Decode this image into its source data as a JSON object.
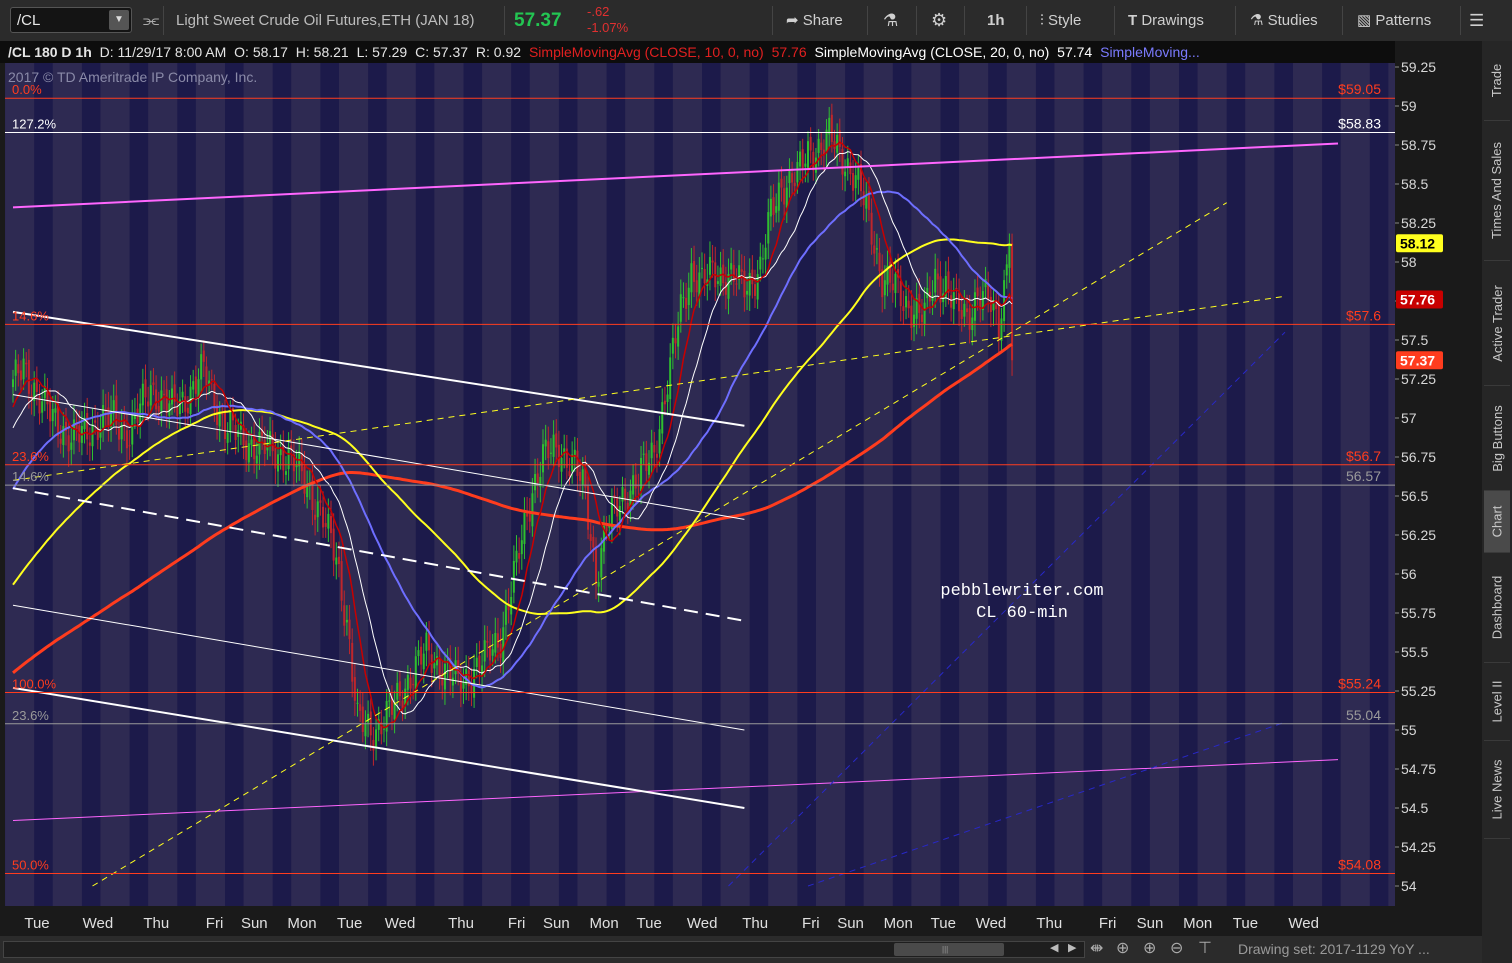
{
  "toolbar": {
    "symbol": "/CL",
    "description": "Light Sweet Crude Oil Futures,ETH (JAN 18)",
    "last_price": "57.37",
    "change": "-.62",
    "change_pct": "-1.07%",
    "share": "Share",
    "timeframe": "1h",
    "style": "Style",
    "drawings": "Drawings",
    "studies": "Studies",
    "patterns": "Patterns"
  },
  "infobar": {
    "title": "/CL 180 D 1h",
    "date": "D: 11/29/17 8:00 AM",
    "open": "O: 58.17",
    "high": "H: 58.21",
    "low": "L: 57.29",
    "close": "C: 57.37",
    "range": "R: 0.92",
    "sma10_label": "SimpleMovingAvg (CLOSE, 10, 0, no)",
    "sma10_value": "57.76",
    "sma20_label": "SimpleMovingAvg (CLOSE, 20, 0, no)",
    "sma20_value": "57.74",
    "sma_more": "SimpleMoving..."
  },
  "copyright": "2017 © TD Ameritrade IP Company, Inc.",
  "watermark": [
    "pebblewriter.com",
    "CL  60-min"
  ],
  "bottom": {
    "drawing_set": "Drawing set: 2017-1129 YoY ..."
  },
  "side_tabs": [
    "Trade",
    "Times And Sales",
    "Active Trader",
    "Big Buttons",
    "Chart",
    "Dashboard",
    "Level II",
    "Live News"
  ],
  "colors": {
    "background": "#2e2a52",
    "session_band": "#1c1a4a",
    "up": "#2fbf2f",
    "down": "#c0262b",
    "fib": "#ff3c1e",
    "sma10": "#c80000",
    "sma20": "#ffffff",
    "sma50": "#6e6eff",
    "sma100": "#ffff1e",
    "sma200": "#ff3c1e",
    "channel": "#ff66ff",
    "accent": "#23c552"
  },
  "chart_data": {
    "type": "candlestick",
    "y_min": 54,
    "y_max": 59.25,
    "y_ticks": [
      54,
      54.25,
      54.5,
      54.75,
      55,
      55.25,
      55.5,
      55.75,
      56,
      56.25,
      56.5,
      56.75,
      57,
      57.25,
      57.5,
      57.75,
      58,
      58.25,
      58.5,
      58.75,
      59,
      59.25
    ],
    "x_labels": [
      {
        "label": "Tue",
        "i": 0
      },
      {
        "label": "Wed",
        "i": 23
      },
      {
        "label": "Thu",
        "i": 45
      },
      {
        "label": "Fri",
        "i": 67
      },
      {
        "label": "Sun",
        "i": 82
      },
      {
        "label": "Mon",
        "i": 100
      },
      {
        "label": "Tue",
        "i": 118
      },
      {
        "label": "Wed",
        "i": 137
      },
      {
        "label": "Thu",
        "i": 160
      },
      {
        "label": "Fri",
        "i": 181
      },
      {
        "label": "Sun",
        "i": 196
      },
      {
        "label": "Mon",
        "i": 214
      },
      {
        "label": "Tue",
        "i": 231
      },
      {
        "label": "Wed",
        "i": 251
      },
      {
        "label": "Thu",
        "i": 271
      },
      {
        "label": "Fri",
        "i": 292
      },
      {
        "label": "Sun",
        "i": 307
      },
      {
        "label": "Mon",
        "i": 325
      },
      {
        "label": "Tue",
        "i": 342
      },
      {
        "label": "Wed",
        "i": 360
      },
      {
        "label": "Thu",
        "i": 382
      },
      {
        "label": "Fri",
        "i": 404
      },
      {
        "label": "Sun",
        "i": 420
      },
      {
        "label": "Mon",
        "i": 438
      },
      {
        "label": "Tue",
        "i": 456
      },
      {
        "label": "Wed",
        "i": 478
      }
    ],
    "close_anchors": [
      [
        0,
        57.2
      ],
      [
        4,
        57.35
      ],
      [
        10,
        57.1
      ],
      [
        16,
        57.0
      ],
      [
        22,
        56.85
      ],
      [
        30,
        56.95
      ],
      [
        38,
        57.0
      ],
      [
        44,
        56.9
      ],
      [
        52,
        57.2
      ],
      [
        60,
        57.05
      ],
      [
        66,
        57.15
      ],
      [
        72,
        57.3
      ],
      [
        80,
        56.95
      ],
      [
        88,
        56.85
      ],
      [
        96,
        56.8
      ],
      [
        104,
        56.75
      ],
      [
        110,
        56.6
      ],
      [
        116,
        56.4
      ],
      [
        122,
        56.1
      ],
      [
        126,
        55.7
      ],
      [
        130,
        55.05
      ],
      [
        136,
        55.0
      ],
      [
        142,
        55.1
      ],
      [
        150,
        55.35
      ],
      [
        156,
        55.5
      ],
      [
        162,
        55.4
      ],
      [
        168,
        55.3
      ],
      [
        172,
        55.35
      ],
      [
        178,
        55.45
      ],
      [
        184,
        55.6
      ],
      [
        190,
        56.05
      ],
      [
        196,
        56.55
      ],
      [
        200,
        56.75
      ],
      [
        206,
        56.8
      ],
      [
        212,
        56.7
      ],
      [
        216,
        56.5
      ],
      [
        220,
        56.0
      ],
      [
        224,
        56.3
      ],
      [
        230,
        56.5
      ],
      [
        236,
        56.6
      ],
      [
        242,
        56.8
      ],
      [
        248,
        57.3
      ],
      [
        252,
        57.7
      ],
      [
        256,
        57.95
      ],
      [
        260,
        57.85
      ],
      [
        264,
        57.95
      ],
      [
        270,
        57.9
      ],
      [
        276,
        57.85
      ],
      [
        282,
        57.95
      ],
      [
        286,
        58.3
      ],
      [
        290,
        58.5
      ],
      [
        296,
        58.55
      ],
      [
        300,
        58.7
      ],
      [
        305,
        58.75
      ],
      [
        308,
        58.8
      ],
      [
        312,
        58.7
      ],
      [
        316,
        58.6
      ],
      [
        320,
        58.45
      ],
      [
        324,
        58.2
      ],
      [
        328,
        57.9
      ],
      [
        332,
        57.85
      ],
      [
        336,
        57.75
      ],
      [
        340,
        57.7
      ],
      [
        344,
        57.65
      ],
      [
        348,
        57.9
      ],
      [
        352,
        57.85
      ],
      [
        356,
        57.7
      ],
      [
        360,
        57.65
      ],
      [
        364,
        57.8
      ],
      [
        368,
        57.75
      ],
      [
        372,
        57.6
      ],
      [
        374,
        57.85
      ],
      [
        376,
        58.12
      ],
      [
        377,
        57.37
      ]
    ],
    "last_bar_index": 377,
    "sma10_window": 10,
    "sma20_window": 20,
    "sma50_window": 50,
    "sma100_window": 100,
    "sma200_window": 200,
    "fib_levels": [
      {
        "label": "0.0%",
        "price": 59.05,
        "value_label": "$59.05",
        "color": "#ff3c1e"
      },
      {
        "label": "127.2%",
        "price": 58.83,
        "value_label": "$58.83",
        "color": "#ffffff"
      },
      {
        "label": "14.6%",
        "price": 57.6,
        "value_label": "$57.6",
        "color": "#ff3c1e"
      },
      {
        "label": "23.6%",
        "price": 56.7,
        "value_label": "$56.7",
        "color": "#ff3c1e"
      },
      {
        "label": "14.6%",
        "price": 56.57,
        "value_label": "56.57",
        "color": "#9a9a9a"
      },
      {
        "label": "100.0%",
        "price": 55.24,
        "value_label": "$55.24",
        "color": "#ff3c1e"
      },
      {
        "label": "23.6%",
        "price": 55.04,
        "value_label": "55.04",
        "color": "#9a9a9a"
      },
      {
        "label": "50.0%",
        "price": 54.08,
        "value_label": "$54.08",
        "color": "#ff3c1e"
      }
    ],
    "trendlines": [
      {
        "name": "upper-channel-line",
        "from": [
          0,
          58.35
        ],
        "to": [
          500,
          58.76
        ],
        "color": "#ff66ff",
        "width": 2,
        "dash": ""
      },
      {
        "name": "lower-channel-line",
        "from": [
          0,
          54.42
        ],
        "to": [
          500,
          54.81
        ],
        "color": "#ff66ff",
        "width": 1,
        "dash": ""
      },
      {
        "name": "descending-upper-line",
        "from": [
          0,
          57.68
        ],
        "to": [
          276,
          56.95
        ],
        "color": "#ffffff",
        "width": 2,
        "dash": ""
      },
      {
        "name": "descending-mid-line",
        "from": [
          0,
          56.55
        ],
        "to": [
          276,
          55.7
        ],
        "color": "#ffffff",
        "width": 2,
        "dash": "14,8"
      },
      {
        "name": "descending-lower-line",
        "from": [
          0,
          55.27
        ],
        "to": [
          276,
          54.5
        ],
        "color": "#ffffff",
        "width": 2,
        "dash": ""
      },
      {
        "name": "descending-thin-line",
        "from": [
          0,
          55.8
        ],
        "to": [
          276,
          55.0
        ],
        "color": "#ffffff",
        "width": 1,
        "dash": ""
      },
      {
        "name": "descending-thin-line-2",
        "from": [
          0,
          57.15
        ],
        "to": [
          276,
          56.35
        ],
        "color": "#ffffff",
        "width": 1,
        "dash": ""
      },
      {
        "name": "yellow-dashed-upper",
        "from": [
          0,
          56.6
        ],
        "to": [
          480,
          57.78
        ],
        "color": "#ffff1e",
        "width": 1,
        "dash": "6,5"
      },
      {
        "name": "yellow-dashed-steep",
        "from": [
          30,
          54.0
        ],
        "to": [
          458,
          58.38
        ],
        "color": "#ffff1e",
        "width": 1,
        "dash": "6,5"
      },
      {
        "name": "blue-dashed-line",
        "from": [
          270,
          54.0
        ],
        "to": [
          480,
          57.55
        ],
        "color": "#2828c8",
        "width": 1,
        "dash": "6,5"
      },
      {
        "name": "blue-dashed-line-2",
        "from": [
          300,
          54.0
        ],
        "to": [
          480,
          55.05
        ],
        "color": "#2828c8",
        "width": 1,
        "dash": "6,5"
      }
    ],
    "price_tags": [
      {
        "value": "58.12",
        "price": 58.12,
        "bg": "#ffff1e",
        "fg": "#000000"
      },
      {
        "value": "57.76",
        "price": 57.76,
        "bg": "#c80000",
        "fg": "#ffffff"
      },
      {
        "value": "57.37",
        "price": 57.37,
        "bg": "#ff3c1e",
        "fg": "#ffffff"
      }
    ]
  }
}
